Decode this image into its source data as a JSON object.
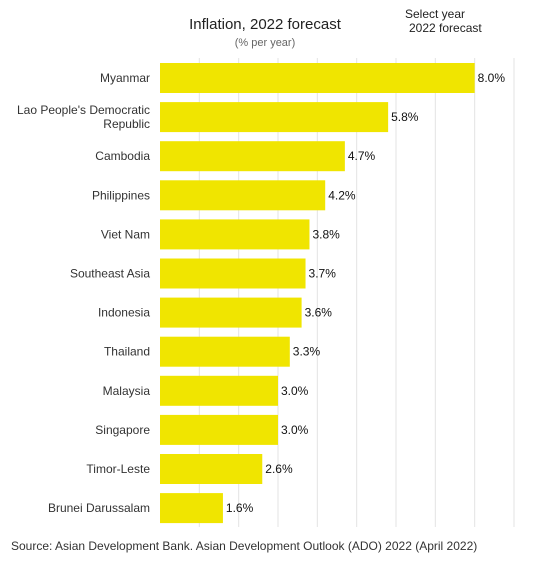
{
  "title": "Inflation, 2022 forecast",
  "subtitle": "(% per year)",
  "selector": {
    "label": "Select year",
    "value": "2022 forecast"
  },
  "source": "Source: Asian Development Bank. Asian Development Outlook (ADO) 2022 (April 2022)",
  "colors": {
    "bar": "#f0e500",
    "grid": "#e3e3e3"
  },
  "chart_data": {
    "type": "bar",
    "orientation": "horizontal",
    "title": "Inflation, 2022 forecast",
    "subtitle": "(% per year)",
    "categories": [
      "Myanmar",
      "Lao People's Democratic Republic",
      "Cambodia",
      "Philippines",
      "Viet Nam",
      "Southeast Asia",
      "Indonesia",
      "Thailand",
      "Malaysia",
      "Singapore",
      "Timor-Leste",
      "Brunei Darussalam"
    ],
    "category_lines": [
      [
        "Myanmar"
      ],
      [
        "Lao People's Democratic",
        "Republic"
      ],
      [
        "Cambodia"
      ],
      [
        "Philippines"
      ],
      [
        "Viet Nam"
      ],
      [
        "Southeast Asia"
      ],
      [
        "Indonesia"
      ],
      [
        "Thailand"
      ],
      [
        "Malaysia"
      ],
      [
        "Singapore"
      ],
      [
        "Timor-Leste"
      ],
      [
        "Brunei Darussalam"
      ]
    ],
    "values": [
      8.0,
      5.8,
      4.7,
      4.2,
      3.8,
      3.7,
      3.6,
      3.3,
      3.0,
      3.0,
      2.6,
      1.6
    ],
    "value_labels": [
      "8.0%",
      "5.8%",
      "4.7%",
      "4.2%",
      "3.8%",
      "3.7%",
      "3.6%",
      "3.3%",
      "3.0%",
      "3.0%",
      "2.6%",
      "1.6%"
    ],
    "xlim": [
      0,
      9
    ],
    "grid_step": 1,
    "grid": true,
    "xlabel": "",
    "ylabel": ""
  }
}
